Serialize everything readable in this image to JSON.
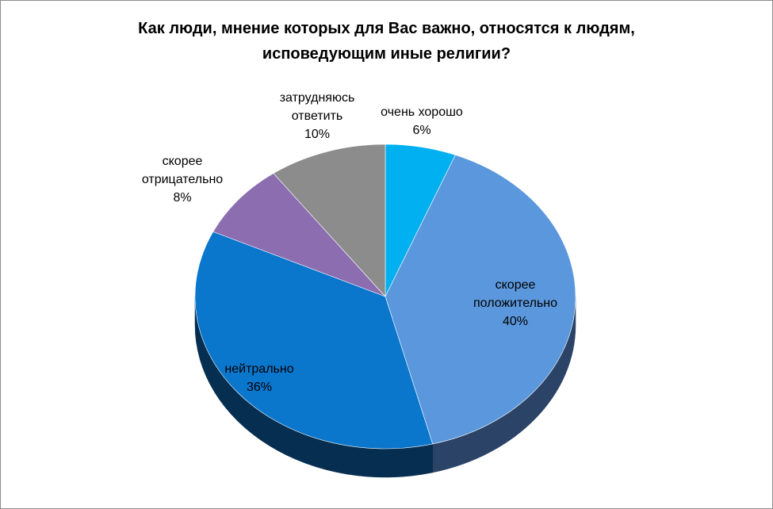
{
  "title_lines": [
    "Как люди, мнение которых для Вас важно, относятся к людям,",
    "исповедующим иные религии?"
  ],
  "chart_data": {
    "type": "pie",
    "title": "Как люди, мнение которых для Вас важно, относятся к людям, исповедующим иные религии?",
    "three_d": true,
    "legend": "none",
    "slices": [
      {
        "name": "очень хорошо",
        "value": 6,
        "label_lines": [
          "очень хорошо",
          "6%"
        ],
        "color": "#00B0F0",
        "side_color": "#0079a8"
      },
      {
        "name": "скорее положительно",
        "value": 40,
        "label_lines": [
          "скорее",
          "положительно",
          "40%"
        ],
        "color": "#5B97DC",
        "side_color": "#2a4366"
      },
      {
        "name": "нейтрально",
        "value": 36,
        "label_lines": [
          "нейтрально",
          "36%"
        ],
        "color": "#0A76CC",
        "side_color": "#052e50"
      },
      {
        "name": "скорее отрицательно",
        "value": 8,
        "label_lines": [
          "скорее",
          "отрицательно",
          "8%"
        ],
        "color": "#8B6DB0",
        "side_color": "#4a3a5e"
      },
      {
        "name": "затрудняюсь ответить",
        "value": 10,
        "label_lines": [
          "затрудняюсь",
          "ответить",
          "10%"
        ],
        "color": "#8C8C8C",
        "side_color": "#4b4b4b"
      }
    ]
  }
}
